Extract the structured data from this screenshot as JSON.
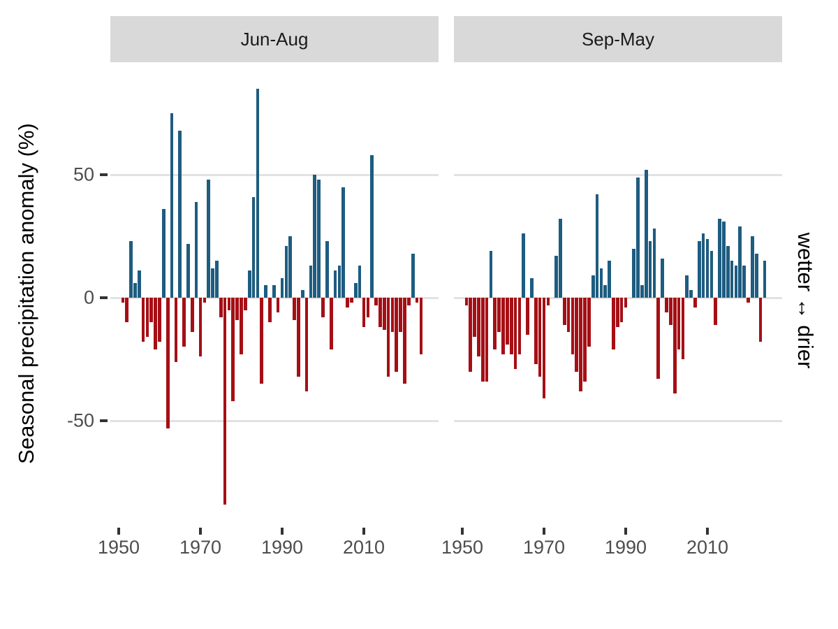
{
  "y_axis": {
    "title": "Seasonal precipitation anomaly (%)",
    "tick_labels": [
      "50",
      "0",
      "-50"
    ],
    "tick_values": [
      50,
      0,
      -50
    ]
  },
  "right_label": "wetter ↔ drier",
  "facets": [
    {
      "label": "Jun-Aug"
    },
    {
      "label": "Sep-May"
    }
  ],
  "x_axis": {
    "tick_labels": [
      "1950",
      "1970",
      "1990",
      "2010"
    ],
    "tick_years": [
      1950,
      1970,
      1990,
      2010
    ]
  },
  "colors": {
    "positive_bar": "#1E5C80",
    "negative_bar": "#A50F15",
    "strip_bg": "#D9D9D9",
    "gridline": "#E2E2E2",
    "axis_text": "#4D4D4D",
    "tick_mark": "#333333"
  },
  "chart_data": {
    "type": "bar",
    "title": "",
    "xlabel": "",
    "ylabel": "Seasonal precipitation anomaly (%)",
    "right_annotation": "wetter ↔ drier",
    "facet_labels": [
      "Jun-Aug",
      "Sep-May"
    ],
    "ylim": [
      -90,
      90
    ],
    "grid_y_values": [
      50,
      0,
      -50
    ],
    "legend": "none",
    "x": [
      1950,
      1951,
      1952,
      1953,
      1954,
      1955,
      1956,
      1957,
      1958,
      1959,
      1960,
      1961,
      1962,
      1963,
      1964,
      1965,
      1966,
      1967,
      1968,
      1969,
      1970,
      1971,
      1972,
      1973,
      1974,
      1975,
      1976,
      1977,
      1978,
      1979,
      1980,
      1981,
      1982,
      1983,
      1984,
      1985,
      1986,
      1987,
      1988,
      1989,
      1990,
      1991,
      1992,
      1993,
      1994,
      1995,
      1996,
      1997,
      1998,
      1999,
      2000,
      2001,
      2002,
      2003,
      2004,
      2005,
      2006,
      2007,
      2008,
      2009,
      2010,
      2011,
      2012,
      2013,
      2014,
      2015,
      2016,
      2017,
      2018,
      2019,
      2020,
      2021,
      2022,
      2023,
      2024
    ],
    "series": [
      {
        "name": "Jun-Aug",
        "values": [
          0,
          -2,
          -10,
          23,
          6,
          11,
          -18,
          -16,
          -10,
          -21,
          -18,
          36,
          -53,
          75,
          -26,
          68,
          -20,
          22,
          -14,
          39,
          -24,
          -2,
          48,
          12,
          15,
          -8,
          -84,
          -5,
          -42,
          -9,
          -23,
          -5,
          11,
          41,
          85,
          -35,
          5,
          -10,
          5,
          -6,
          8,
          21,
          25,
          -9,
          -32,
          3,
          -38,
          13,
          50,
          48,
          -8,
          23,
          -21,
          11,
          13,
          45,
          -4,
          -2,
          6,
          13,
          -12,
          -8,
          58,
          -3,
          -12,
          -13,
          -32,
          -14,
          -30,
          -14,
          -35,
          -3,
          18,
          -2,
          -23
        ]
      },
      {
        "name": "Sep-May",
        "values": [
          0,
          -3,
          -30,
          -16,
          -24,
          -34,
          -34,
          19,
          -21,
          -14,
          -23,
          -19,
          -23,
          -29,
          -23,
          26,
          -15,
          8,
          -27,
          -32,
          -41,
          -3,
          0,
          17,
          32,
          -11,
          -14,
          -23,
          -30,
          -38,
          -34,
          -20,
          9,
          42,
          12,
          5,
          15,
          -21,
          -12,
          -10,
          -4,
          0,
          20,
          49,
          5,
          52,
          23,
          28,
          -33,
          16,
          -6,
          -11,
          -39,
          -21,
          -25,
          9,
          3,
          -4,
          23,
          26,
          24,
          19,
          -11,
          32,
          31,
          21,
          15,
          13,
          29,
          13,
          -2,
          25,
          18,
          -18,
          15
        ]
      }
    ]
  }
}
